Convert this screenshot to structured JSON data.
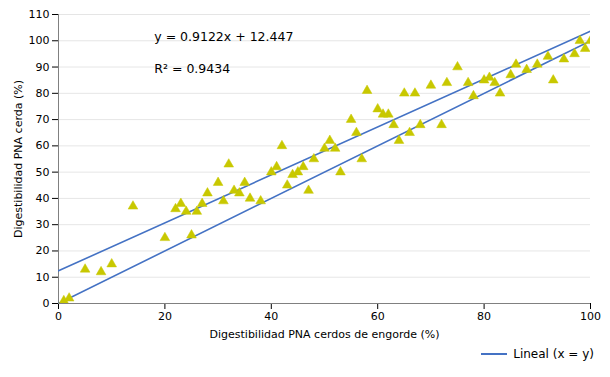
{
  "chart_data": {
    "type": "scatter",
    "xlabel": "Digestibilidad PNA cerdos de engorde (%)",
    "ylabel": "Digestibilidad PNA cerda (%)",
    "xlim": [
      0,
      100
    ],
    "ylim": [
      0,
      110
    ],
    "xticks": [
      0,
      20,
      40,
      60,
      80,
      100
    ],
    "yticks": [
      0,
      10,
      20,
      30,
      40,
      50,
      60,
      70,
      80,
      90,
      100,
      110
    ],
    "grid": "y",
    "legend": "lower right",
    "annotations": [
      {
        "text": "y = 0.9122x + 12.447"
      },
      {
        "text": "R² = 0.9434"
      }
    ],
    "series": [
      {
        "type": "scatter",
        "marker": "triangle",
        "color": "#c8c800",
        "x": [
          1,
          2,
          5,
          8,
          10,
          14,
          20,
          22,
          23,
          24,
          25,
          26,
          27,
          28,
          30,
          31,
          32,
          33,
          34,
          35,
          36,
          38,
          40,
          41,
          42,
          43,
          44,
          45,
          46,
          47,
          48,
          50,
          51,
          52,
          53,
          55,
          56,
          57,
          58,
          60,
          61,
          62,
          63,
          64,
          65,
          66,
          67,
          68,
          70,
          72,
          73,
          75,
          77,
          78,
          80,
          81,
          82,
          83,
          85,
          86,
          88,
          90,
          92,
          93,
          95,
          97,
          98,
          99,
          100
        ],
        "values": [
          1,
          2,
          13,
          12,
          15,
          37,
          25,
          36,
          38,
          35,
          26,
          35,
          38,
          42,
          46,
          39,
          53,
          43,
          42,
          46,
          40,
          39,
          50,
          52,
          60,
          45,
          49,
          50,
          52,
          43,
          55,
          59,
          62,
          59,
          50,
          70,
          65,
          55,
          81,
          74,
          72,
          72,
          68,
          62,
          80,
          65,
          80,
          68,
          83,
          68,
          84,
          90,
          84,
          79,
          85,
          86,
          84,
          80,
          87,
          91,
          89,
          91,
          94,
          85,
          93,
          95,
          100,
          97,
          100
        ]
      },
      {
        "type": "line",
        "color": "#4472c4",
        "x": [
          0,
          100
        ],
        "values": [
          12.447,
          103.667
        ]
      },
      {
        "type": "line",
        "name": "Lineal (x = y)",
        "color": "#4472c4",
        "x": [
          0,
          100
        ],
        "values": [
          0,
          100
        ]
      }
    ]
  }
}
